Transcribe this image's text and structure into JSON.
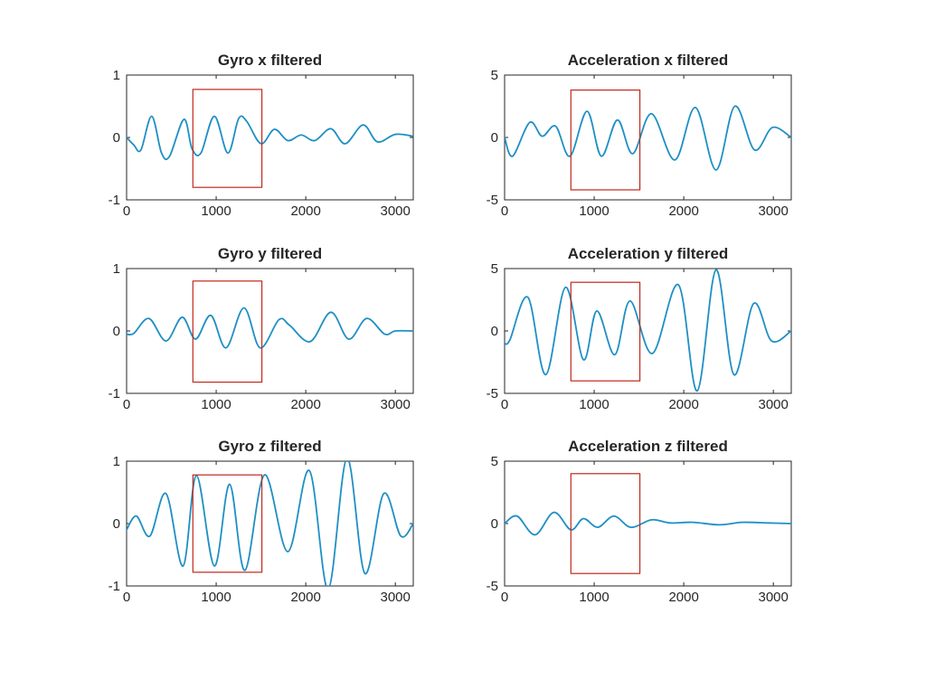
{
  "chart_data": [
    {
      "type": "line",
      "title": "Gyro x filtered",
      "xlim": [
        0,
        3200
      ],
      "ylim": [
        -1,
        1
      ],
      "xticks": [
        "0",
        "1000",
        "2000",
        "3000"
      ],
      "yticks": [
        "-1",
        "0",
        "1"
      ],
      "series": [
        {
          "color": "#1f8fc4",
          "x": [
            0,
            80,
            160,
            280,
            390,
            480,
            640,
            730,
            830,
            980,
            1130,
            1250,
            1340,
            1500,
            1650,
            1800,
            1950,
            2100,
            2280,
            2440,
            2640,
            2800,
            3000,
            3200
          ],
          "y": [
            0,
            -0.12,
            -0.2,
            0.34,
            -0.25,
            -0.3,
            0.29,
            -0.18,
            -0.25,
            0.34,
            -0.25,
            0.3,
            0.26,
            -0.1,
            0.13,
            -0.05,
            0.04,
            -0.05,
            0.14,
            -0.1,
            0.2,
            -0.07,
            0.05,
            0.02
          ]
        }
      ],
      "highlight": {
        "x_range": [
          740,
          1510
        ],
        "y_range": [
          -0.8,
          0.77
        ],
        "color": "#c0281c"
      }
    },
    {
      "type": "line",
      "title": "Acceleration x filtered",
      "xlim": [
        0,
        3200
      ],
      "ylim": [
        -5,
        5
      ],
      "xticks": [
        "0",
        "1000",
        "2000",
        "3000"
      ],
      "yticks": [
        "-5",
        "0",
        "5"
      ],
      "series": [
        {
          "color": "#1f8fc4",
          "x": [
            0,
            90,
            280,
            420,
            570,
            730,
            920,
            1080,
            1260,
            1430,
            1640,
            1900,
            2130,
            2360,
            2570,
            2790,
            2990,
            3200
          ],
          "y": [
            0,
            -1.5,
            1.2,
            0.1,
            0.9,
            -1.5,
            2.1,
            -1.5,
            1.4,
            -1.3,
            1.9,
            -1.8,
            2.4,
            -2.6,
            2.5,
            -1.0,
            0.8,
            0
          ]
        }
      ],
      "highlight": {
        "x_range": [
          740,
          1510
        ],
        "y_range": [
          -4.2,
          3.8
        ],
        "color": "#c0281c"
      }
    },
    {
      "type": "line",
      "title": "Gyro y filtered",
      "xlim": [
        0,
        3200
      ],
      "ylim": [
        -1,
        1
      ],
      "xticks": [
        "0",
        "1000",
        "2000",
        "3000"
      ],
      "yticks": [
        "-1",
        "0",
        "1"
      ],
      "series": [
        {
          "color": "#1f8fc4",
          "x": [
            0,
            80,
            250,
            440,
            620,
            770,
            940,
            1110,
            1310,
            1490,
            1700,
            1820,
            2050,
            2280,
            2480,
            2680,
            2880,
            3000,
            3200
          ],
          "y": [
            -0.05,
            -0.04,
            0.2,
            -0.16,
            0.22,
            -0.13,
            0.25,
            -0.27,
            0.37,
            -0.27,
            0.18,
            0.09,
            -0.17,
            0.3,
            -0.13,
            0.2,
            -0.05,
            0.0,
            0.0
          ]
        }
      ],
      "highlight": {
        "x_range": [
          740,
          1510
        ],
        "y_range": [
          -0.82,
          0.8
        ],
        "color": "#c0281c"
      }
    },
    {
      "type": "line",
      "title": "Acceleration y filtered",
      "xlim": [
        0,
        3200
      ],
      "ylim": [
        -5,
        5
      ],
      "xticks": [
        "0",
        "1000",
        "2000",
        "3000"
      ],
      "yticks": [
        "-5",
        "0",
        "5"
      ],
      "series": [
        {
          "color": "#1f8fc4",
          "x": [
            0,
            60,
            260,
            460,
            680,
            880,
            1030,
            1230,
            1400,
            1650,
            1940,
            2150,
            2360,
            2560,
            2780,
            2980,
            3200
          ],
          "y": [
            -1.0,
            -0.7,
            2.7,
            -3.5,
            3.5,
            -2.3,
            1.6,
            -1.9,
            2.4,
            -1.8,
            3.7,
            -4.8,
            4.9,
            -3.5,
            2.2,
            -0.8,
            0
          ]
        }
      ],
      "highlight": {
        "x_range": [
          740,
          1510
        ],
        "y_range": [
          -4.0,
          3.9
        ],
        "color": "#c0281c"
      }
    },
    {
      "type": "line",
      "title": "Gyro z filtered",
      "xlim": [
        0,
        3200
      ],
      "ylim": [
        -1,
        1
      ],
      "xticks": [
        "0",
        "1000",
        "2000",
        "3000"
      ],
      "yticks": [
        "-1",
        "0",
        "1"
      ],
      "series": [
        {
          "color": "#1f8fc4",
          "x": [
            0,
            110,
            260,
            440,
            630,
            780,
            980,
            1150,
            1320,
            1540,
            1800,
            2040,
            2250,
            2460,
            2660,
            2870,
            3060,
            3200
          ],
          "y": [
            -0.1,
            0.12,
            -0.2,
            0.48,
            -0.68,
            0.77,
            -0.68,
            0.63,
            -0.75,
            0.78,
            -0.45,
            0.85,
            -1.05,
            1.05,
            -0.8,
            0.48,
            -0.2,
            0.0
          ]
        }
      ],
      "highlight": {
        "x_range": [
          740,
          1510
        ],
        "y_range": [
          -0.78,
          0.78
        ],
        "color": "#c0281c"
      }
    },
    {
      "type": "line",
      "title": "Acceleration z filtered",
      "xlim": [
        0,
        3200
      ],
      "ylim": [
        -5,
        5
      ],
      "xticks": [
        "0",
        "1000",
        "2000",
        "3000"
      ],
      "yticks": [
        "-5",
        "0",
        "5"
      ],
      "series": [
        {
          "color": "#1f8fc4",
          "x": [
            0,
            140,
            340,
            550,
            740,
            880,
            1040,
            1220,
            1410,
            1640,
            1850,
            2100,
            2400,
            2650,
            2950,
            3200
          ],
          "y": [
            0.0,
            0.6,
            -0.9,
            0.9,
            -0.5,
            0.4,
            -0.3,
            0.6,
            -0.3,
            0.3,
            0.05,
            0.1,
            -0.1,
            0.1,
            0.05,
            0.0
          ]
        }
      ],
      "highlight": {
        "x_range": [
          740,
          1510
        ],
        "y_range": [
          -4.0,
          4.0
        ],
        "color": "#c0281c"
      }
    }
  ]
}
